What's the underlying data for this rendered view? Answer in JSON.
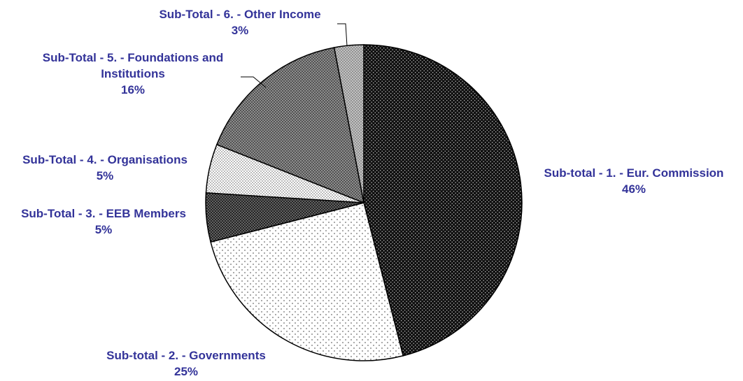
{
  "chart_data": {
    "type": "pie",
    "title": "",
    "colors": {
      "label_text": "#333399",
      "outline": "#000000"
    },
    "slices": [
      {
        "label_lines": [
          "Sub-total - 1. - Eur. Commission"
        ],
        "value": 46,
        "value_text": "46%",
        "fill": "#1a1a1a",
        "pattern": "dots-light-on-dark"
      },
      {
        "label_lines": [
          "Sub-total - 2. - Governments"
        ],
        "value": 25,
        "value_text": "25%",
        "fill": "#ffffff",
        "pattern": "dots-sparse"
      },
      {
        "label_lines": [
          "Sub-Total - 3. - EEB Members"
        ],
        "value": 5,
        "value_text": "5%",
        "fill": "#2a2a2a",
        "pattern": "crosshatch-dark"
      },
      {
        "label_lines": [
          "Sub-Total - 4. - Organisations"
        ],
        "value": 5,
        "value_text": "5%",
        "fill": "#ffffff",
        "pattern": "dots-dense"
      },
      {
        "label_lines": [
          "Sub-Total - 5. - Foundations and",
          "Institutions"
        ],
        "value": 16,
        "value_text": "16%",
        "fill": "#666666",
        "pattern": "crosshatch-medium"
      },
      {
        "label_lines": [
          "Sub-Total - 6. - Other Income"
        ],
        "value": 3,
        "value_text": "3%",
        "fill": "#9a9a9a",
        "pattern": "crosshatch-light"
      }
    ]
  }
}
